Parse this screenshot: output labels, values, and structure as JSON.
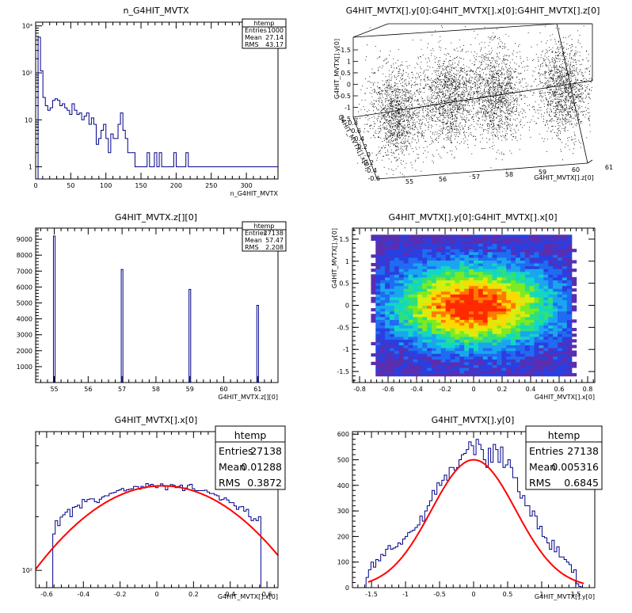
{
  "chart_data": [
    {
      "type": "bar",
      "title": "n_G4HIT_MVTX",
      "xlabel": "n_G4HIT_MVTX",
      "ylabel": "",
      "log_y": true,
      "xlim": [
        0,
        345
      ],
      "ylim": [
        0.55,
        1200
      ],
      "xticks": [
        "0",
        "50",
        "100",
        "150",
        "200",
        "250",
        "300"
      ],
      "yticks": [
        "1",
        "10",
        "10²",
        "10³"
      ],
      "bin_edges_start": 0,
      "bin_width": 3.45,
      "values": [
        0,
        575,
        110,
        30,
        20,
        16,
        18,
        26,
        28,
        26,
        20,
        22,
        18,
        16,
        13,
        22,
        16,
        13,
        14,
        10,
        12,
        14,
        8,
        11,
        8,
        3,
        4,
        6,
        8,
        4,
        2,
        5,
        4,
        4,
        8,
        14,
        6,
        4,
        2,
        2,
        2,
        1,
        1,
        1,
        1,
        1,
        2,
        1,
        1,
        2,
        1,
        2,
        1,
        1,
        1,
        1,
        1,
        2,
        1,
        1,
        1,
        1,
        2,
        1,
        1,
        1,
        1,
        1,
        1,
        1,
        1,
        1,
        1,
        1,
        1,
        1,
        1,
        1,
        1,
        1,
        1,
        1,
        1,
        1,
        1,
        1,
        1,
        1,
        1,
        1,
        1,
        1,
        1,
        1,
        1,
        1,
        1,
        1,
        1,
        1
      ],
      "grid": false,
      "stats": {
        "name": "htemp",
        "rows": [
          [
            "Entries",
            "1000"
          ],
          [
            "Mean",
            "27.14"
          ],
          [
            "RMS",
            "43.17"
          ]
        ]
      }
    },
    {
      "type": "scatter3d",
      "title": "G4HIT_MVTX[].y[0]:G4HIT_MVTX[].x[0]:G4HIT_MVTX[].z[0]",
      "xlabel": "G4HIT_MVTX[].z[0]",
      "ylabel": "G4HIT_MVTX[].x[0]",
      "zlabel": "G4HIT_MVTX[].y[0]",
      "z_ticks": [
        "1.5",
        "1",
        "0.5",
        "0",
        "-0.5",
        "-1",
        "-1.5"
      ],
      "x_ticks": [
        "55",
        "56",
        "57",
        "58",
        "59",
        "60",
        "61"
      ],
      "y_ticks": [
        "0.8",
        "0.6",
        "0.4",
        "0.2",
        "0",
        "-0.2",
        "-0.4",
        "-0.6"
      ],
      "clusters_z": [
        55,
        57,
        59,
        61
      ],
      "note_points_per_cluster": 1400
    },
    {
      "type": "bar",
      "title": "G4HIT_MVTX.z[][0]",
      "xlabel": "G4HIT_MVTX.z[][0]",
      "ylabel": "",
      "xlim": [
        54.45,
        61.6
      ],
      "ylim": [
        0,
        9700
      ],
      "xticks": [
        "55",
        "56",
        "57",
        "58",
        "59",
        "60",
        "61"
      ],
      "yticks": [
        "1000",
        "2000",
        "3000",
        "4000",
        "5000",
        "6000",
        "7000",
        "8000",
        "9000"
      ],
      "bars": [
        {
          "x": 55,
          "value": 9200
        },
        {
          "x": 57,
          "value": 7100
        },
        {
          "x": 59,
          "value": 5850
        },
        {
          "x": 61,
          "value": 4850
        }
      ],
      "stats": {
        "name": "htemp",
        "rows": [
          [
            "Entries",
            "27138"
          ],
          [
            "Mean",
            "57.47"
          ],
          [
            "RMS",
            "2.208"
          ]
        ]
      }
    },
    {
      "type": "heatmap",
      "title": "G4HIT_MVTX[].y[0]:G4HIT_MVTX[].x[0]",
      "xlabel": "G4HIT_MVTX[].x[0]",
      "ylabel": "G4HIT_MVTX[].y[0]",
      "xlim": [
        -0.85,
        0.85
      ],
      "ylim": [
        -1.75,
        1.75
      ],
      "xticks": [
        "-0.8",
        "-0.6",
        "-0.4",
        "-0.2",
        "0",
        "0.2",
        "0.4",
        "0.6",
        "0.8"
      ],
      "yticks": [
        "1.5",
        "1",
        "0.5",
        "0",
        "-0.5",
        "-1",
        "-1.5"
      ],
      "data_region_x": [
        -0.72,
        0.72
      ],
      "data_region_y": [
        -1.6,
        1.6
      ],
      "palette": [
        "#5a2eb0",
        "#2b3fe0",
        "#1f6cf2",
        "#1aa6ee",
        "#13d6c6",
        "#2ee07a",
        "#7dea22",
        "#d6ee10",
        "#ffd800",
        "#ff7a00",
        "#ff2a00"
      ]
    },
    {
      "type": "line",
      "title": "G4HIT_MVTX[].x[0]",
      "xlabel": "G4HIT_MVTX[].x[0]",
      "ylabel": "",
      "log_y": true,
      "xlim": [
        -0.66,
        0.66
      ],
      "ylim": [
        80,
        600
      ],
      "xticks": [
        "-0.6",
        "-0.4",
        "-0.2",
        "0",
        "0.2",
        "0.4",
        "0.6"
      ],
      "yticks": [
        "10²"
      ],
      "hist_x_range": [
        -0.58,
        0.58
      ],
      "hist_values": [
        80,
        160,
        190,
        178,
        199,
        205,
        212,
        220,
        200,
        226,
        228,
        232,
        224,
        250,
        243,
        250,
        252,
        252,
        243,
        240,
        251,
        258,
        262,
        262,
        270,
        272,
        274,
        280,
        283,
        288,
        279,
        283,
        285,
        287,
        296,
        295,
        285,
        296,
        290,
        307,
        300,
        304,
        295,
        291,
        299,
        306,
        296,
        283,
        297,
        303,
        300,
        291,
        296,
        301,
        280,
        290,
        300,
        304,
        287,
        280,
        280,
        280,
        280,
        282,
        275,
        270,
        270,
        265,
        262,
        248,
        250,
        255,
        248,
        240,
        240,
        230,
        220,
        227,
        228,
        215,
        220,
        200,
        190,
        195,
        190,
        200,
        80
      ],
      "fit": {
        "type": "gaussian",
        "amp": 298,
        "mean": 0.03,
        "sigma": 0.47,
        "color": "#ff0000"
      },
      "stats": {
        "name": "htemp",
        "rows": [
          [
            "Entries",
            "27138"
          ],
          [
            "Mean",
            "0.01288"
          ],
          [
            "RMS",
            "0.3872"
          ]
        ]
      }
    },
    {
      "type": "line",
      "title": "G4HIT_MVTX[].y[0]",
      "xlabel": "G4HIT_MVTX[].y[0]",
      "ylabel": "",
      "xlim": [
        -1.78,
        1.78
      ],
      "ylim": [
        0,
        610
      ],
      "xticks": [
        "-1.5",
        "-1",
        "-0.5",
        "0",
        "0.5",
        "1",
        "1.5"
      ],
      "yticks": [
        "0",
        "100",
        "200",
        "300",
        "400",
        "500",
        "600"
      ],
      "hist_x_range": [
        -1.58,
        1.58
      ],
      "hist_values": [
        40,
        70,
        100,
        80,
        110,
        105,
        130,
        125,
        150,
        165,
        150,
        155,
        160,
        175,
        170,
        190,
        200,
        215,
        220,
        225,
        235,
        245,
        280,
        260,
        300,
        320,
        340,
        380,
        365,
        410,
        400,
        420,
        440,
        420,
        470,
        470,
        460,
        470,
        500,
        520,
        525,
        540,
        570,
        555,
        520,
        580,
        560,
        540,
        500,
        470,
        545,
        490,
        560,
        540,
        490,
        550,
        470,
        480,
        500,
        470,
        430,
        430,
        375,
        350,
        360,
        320,
        320,
        280,
        300,
        280,
        230,
        240,
        200,
        195,
        175,
        150,
        185,
        140,
        160,
        120,
        120,
        110,
        100,
        90,
        60,
        70,
        15,
        5
      ],
      "fit": {
        "type": "gaussian",
        "amp": 500,
        "mean": 0.0,
        "sigma": 0.62,
        "color": "#ff0000"
      },
      "stats": {
        "name": "htemp",
        "rows": [
          [
            "Entries",
            "27138"
          ],
          [
            "Mean",
            "0.005316"
          ],
          [
            "RMS",
            "0.6845"
          ]
        ]
      }
    }
  ]
}
